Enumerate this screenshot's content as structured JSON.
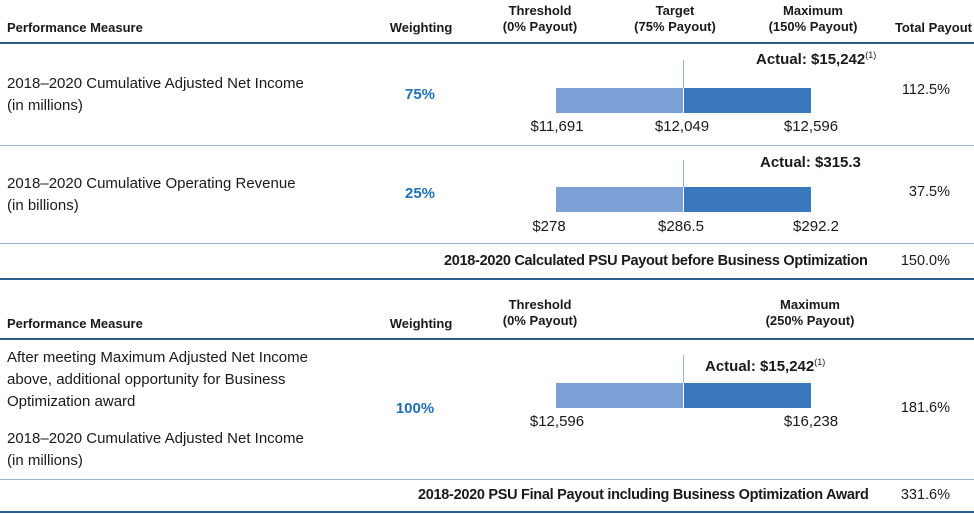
{
  "table1": {
    "headers": {
      "measure": "Performance Measure",
      "weighting": "Weighting",
      "threshold": [
        "Threshold",
        "(0% Payout)"
      ],
      "target": [
        "Target",
        "(75% Payout)"
      ],
      "maximum": [
        "Maximum",
        "(150% Payout)"
      ],
      "total": "Total Payout"
    },
    "rows": [
      {
        "measure": [
          "2018–2020 Cumulative Adjusted Net Income",
          "(in millions)"
        ],
        "weighting": "75%",
        "actual": "Actual: $15,242",
        "footnote": "(1)",
        "ticks": [
          "$11,691",
          "$12,049",
          "$12,596"
        ],
        "payout": "112.5%"
      },
      {
        "measure": [
          "2018–2020 Cumulative Operating Revenue",
          "(in billions)"
        ],
        "weighting": "25%",
        "actual": "Actual: $315.3",
        "footnote": "",
        "ticks": [
          "$278",
          "$286.5",
          "$292.2"
        ],
        "payout": "37.5%"
      }
    ],
    "summary": {
      "label": "2018-2020 Calculated PSU Payout before Business Optimization",
      "value": "150.0%"
    }
  },
  "table2": {
    "headers": {
      "measure": "Performance Measure",
      "weighting": "Weighting",
      "threshold": [
        "Threshold",
        "(0% Payout)"
      ],
      "maximum": [
        "Maximum",
        "(250% Payout)"
      ]
    },
    "row": {
      "measure": [
        "After meeting Maximum Adjusted Net Income",
        "above, additional opportunity for Business",
        "Optimization award"
      ],
      "measure2": [
        "2018–2020 Cumulative Adjusted Net Income",
        "(in millions)"
      ],
      "weighting": "100%",
      "actual": "Actual: $15,242",
      "footnote": "(1)",
      "ticks": [
        "$12,596",
        "$16,238"
      ],
      "payout": "181.6%"
    },
    "summary": {
      "label": "2018-2020 PSU Final Payout including Business Optimization Award",
      "value": "331.6%"
    }
  },
  "colors": {
    "bar_light": "#7aa0d6",
    "bar_dark": "#3a78bd",
    "accent": "#1f6fb5",
    "rule": "#2b5d8f"
  }
}
